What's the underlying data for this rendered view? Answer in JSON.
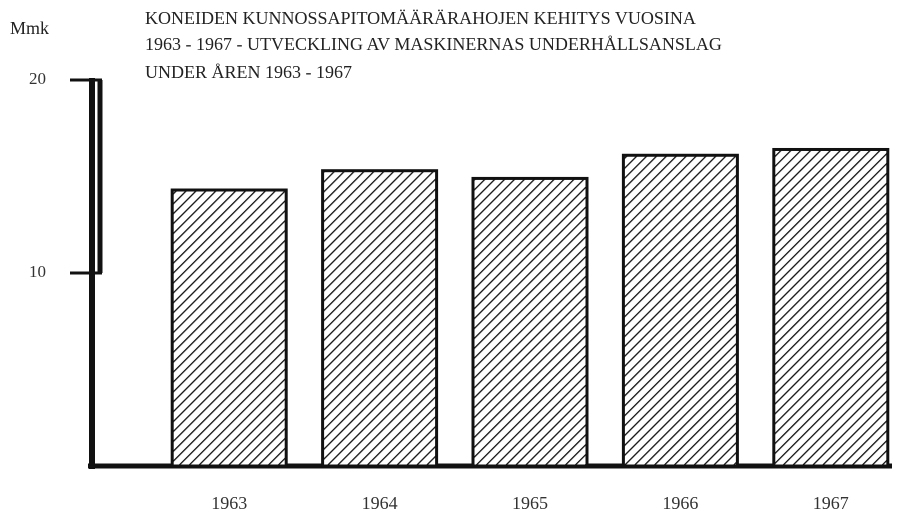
{
  "chart_data": {
    "type": "bar",
    "title": [
      "KONEIDEN KUNNOSSAPITOMÄÄRÄRAHOJEN KEHITYS VUOSINA",
      "1963 - 1967 - UTVECKLING AV MASKINERNAS UNDERHÅLLSANSLAG",
      "UNDER ÅREN  1963 - 1967"
    ],
    "y_label": "Mmk",
    "categories": [
      "1963",
      "1964",
      "1965",
      "1966",
      "1967"
    ],
    "values": [
      14.3,
      15.3,
      14.9,
      16.1,
      16.4
    ],
    "color": "#111111",
    "ylim": [
      0,
      20
    ],
    "yticks": [
      10,
      20
    ],
    "grid": false
  }
}
